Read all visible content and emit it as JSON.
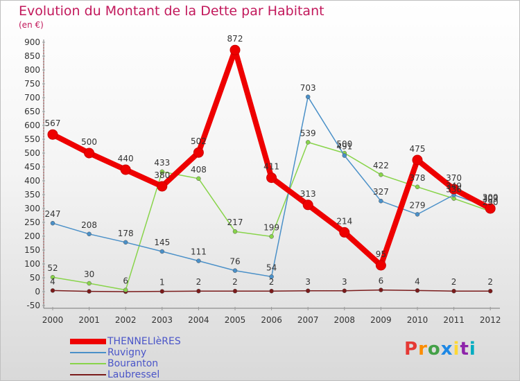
{
  "header": {
    "title": "Evolution du Montant de la Dette par Habitant",
    "subtitle": "(en €)"
  },
  "logo": {
    "text": "Proxiti",
    "colors": [
      "#e53935",
      "#fb8c00",
      "#43a047",
      "#1e88e5",
      "#fdd835",
      "#8e24aa",
      "#00acc1"
    ]
  },
  "chart_data": {
    "type": "line",
    "title": "Evolution du Montant de la Dette par Habitant",
    "subtitle": "(en €)",
    "xlabel": "",
    "ylabel": "",
    "categories": [
      "2000",
      "2001",
      "2002",
      "2003",
      "2004",
      "2005",
      "2006",
      "2007",
      "2008",
      "2009",
      "2010",
      "2011",
      "2012"
    ],
    "ylim": [
      -50,
      900
    ],
    "yticks": [
      -50,
      0,
      50,
      100,
      150,
      200,
      250,
      300,
      350,
      400,
      450,
      500,
      550,
      600,
      650,
      700,
      750,
      800,
      850,
      900
    ],
    "grid": false,
    "legend": "bottom-left",
    "series": [
      {
        "name": "THENNELIèRES",
        "color": "#ee0000",
        "values": [
          567,
          500,
          440,
          380,
          502,
          872,
          411,
          313,
          214,
          95,
          475,
          370,
          300
        ]
      },
      {
        "name": "Ruvigny",
        "color": "#4a90c8",
        "values": [
          247,
          208,
          178,
          145,
          111,
          76,
          54,
          703,
          491,
          327,
          279,
          349,
          303
        ]
      },
      {
        "name": "Bouranton",
        "color": "#88d44a",
        "values": [
          52,
          30,
          6,
          433,
          408,
          217,
          199,
          539,
          500,
          422,
          378,
          336,
          290
        ]
      },
      {
        "name": "Laubressel",
        "color": "#7a1a1a",
        "values": [
          4,
          1,
          0,
          1,
          2,
          2,
          2,
          3,
          3,
          6,
          4,
          2,
          2
        ]
      }
    ],
    "data_labels": [
      {
        "x": "2000",
        "text": "567"
      },
      {
        "x": "2001",
        "text": "500"
      },
      {
        "x": "2002",
        "text": "440"
      },
      {
        "x": "2003",
        "text": "380"
      },
      {
        "x": "2004",
        "text": "502"
      },
      {
        "x": "2005",
        "text": "872"
      },
      {
        "x": "2006",
        "text": "411"
      },
      {
        "x": "2007",
        "text": "313"
      },
      {
        "x": "2008",
        "text": "214"
      },
      {
        "x": "2009",
        "text": "95"
      },
      {
        "x": "2010",
        "text": "475"
      },
      {
        "x": "2011",
        "text": "370"
      },
      {
        "x": "2012",
        "text": "300"
      },
      {
        "x": "2000",
        "text": "247"
      },
      {
        "x": "2001",
        "text": "208"
      },
      {
        "x": "2002",
        "text": "178"
      },
      {
        "x": "2003",
        "text": "145"
      },
      {
        "x": "2004",
        "text": "111"
      },
      {
        "x": "2005",
        "text": "76"
      },
      {
        "x": "2006",
        "text": "54"
      },
      {
        "x": "2007",
        "text": "703"
      },
      {
        "x": "2008",
        "text": "491"
      },
      {
        "x": "2009",
        "text": "327"
      },
      {
        "x": "2010",
        "text": "279"
      },
      {
        "x": "2011",
        "text": "349"
      },
      {
        "x": "2012",
        "text": "303"
      },
      {
        "x": "2000",
        "text": "52"
      },
      {
        "x": "2001",
        "text": "30"
      },
      {
        "x": "2002",
        "text": "6"
      },
      {
        "x": "2003",
        "text": "433"
      },
      {
        "x": "2004",
        "text": "408"
      },
      {
        "x": "2005",
        "text": "217"
      },
      {
        "x": "2006",
        "text": "199"
      },
      {
        "x": "2007",
        "text": "539"
      },
      {
        "x": "2008",
        "text": "500"
      },
      {
        "x": "2009",
        "text": "422"
      },
      {
        "x": "2010",
        "text": "378"
      },
      {
        "x": "2011",
        "text": "336"
      },
      {
        "x": "2012",
        "text": "290"
      },
      {
        "x": "2000",
        "text": "4"
      },
      {
        "x": "2003",
        "text": "1"
      },
      {
        "x": "2004",
        "text": "2"
      },
      {
        "x": "2005",
        "text": "2"
      },
      {
        "x": "2006",
        "text": "2"
      },
      {
        "x": "2007",
        "text": "3"
      },
      {
        "x": "2008",
        "text": "3"
      },
      {
        "x": "2009",
        "text": "6"
      },
      {
        "x": "2010",
        "text": "4"
      },
      {
        "x": "2011",
        "text": "2"
      },
      {
        "x": "2012",
        "text": "2"
      }
    ]
  }
}
